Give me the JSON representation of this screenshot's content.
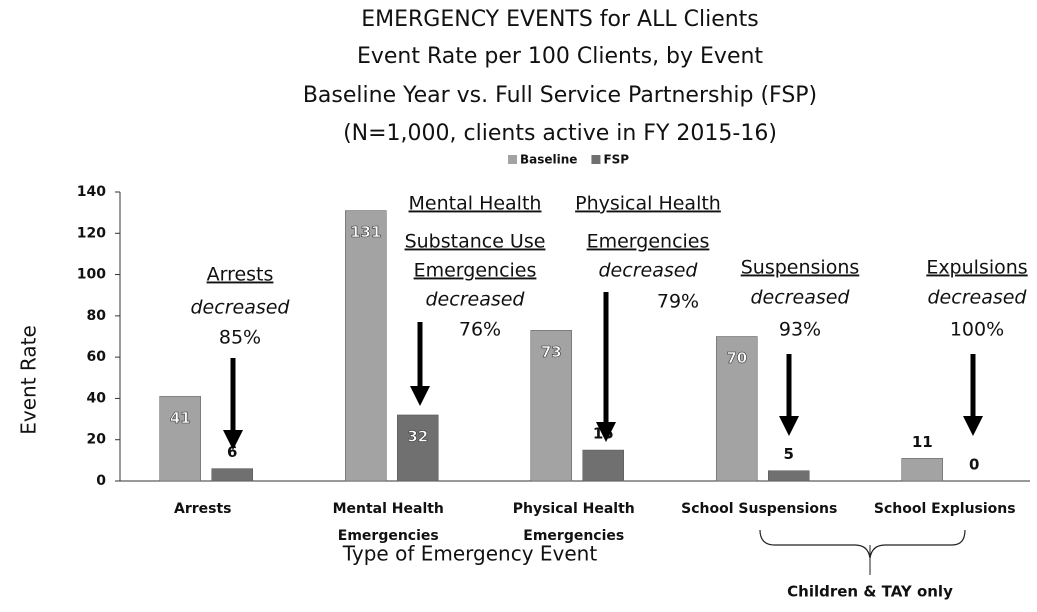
{
  "chart_data": {
    "type": "bar",
    "title": [
      "EMERGENCY EVENTS for ALL Clients",
      "Event Rate per 100 Clients, by Event",
      "Baseline Year vs. Full Service Partnership (FSP)",
      "(N=1,000, clients active in FY 2015-16)"
    ],
    "categories": [
      [
        "Arrests"
      ],
      [
        "Mental Health",
        "Emergencies"
      ],
      [
        "Physical Health",
        "Emergencies"
      ],
      [
        "School Suspensions"
      ],
      [
        "School Explusions"
      ]
    ],
    "series": [
      {
        "name": "Baseline",
        "color": "#a3a3a3",
        "values": [
          41,
          131,
          73,
          70,
          11
        ]
      },
      {
        "name": "FSP",
        "color": "#707070",
        "values": [
          6,
          32,
          15,
          5,
          0
        ]
      }
    ],
    "ylim": [
      0,
      140
    ],
    "yticks": [
      0,
      20,
      40,
      60,
      80,
      100,
      120,
      140
    ],
    "y_label": "Event Rate",
    "x_label": "Type of Emergency Event",
    "annotations": [
      {
        "heading": [
          "Arrests"
        ],
        "text": "decreased",
        "change": "85%"
      },
      {
        "heading": [
          "Mental Health",
          "Substance Use",
          "Emergencies"
        ],
        "text": "decreased",
        "change": "76%"
      },
      {
        "heading": [
          "Physical Health",
          "Emergencies"
        ],
        "text": "decreased",
        "change": "79%"
      },
      {
        "heading": [
          "Suspensions"
        ],
        "text": "decreased",
        "change": "93%"
      },
      {
        "heading": [
          "Expulsions"
        ],
        "text": "decreased",
        "change": "100%"
      }
    ],
    "bracket_label": "Children & TAY only",
    "legend": "top"
  }
}
